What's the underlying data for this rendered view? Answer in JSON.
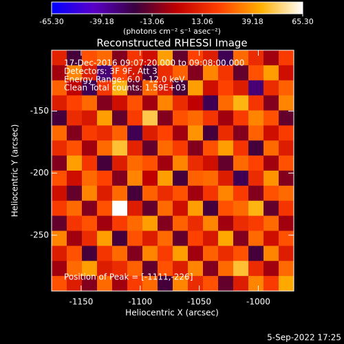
{
  "chart_data": {
    "type": "heatmap",
    "title": "Reconstructed RHESSI Image",
    "colorbar_label": "(photons cm⁻² s⁻¹ asec⁻²)",
    "clim": [
      -65.3,
      65.3
    ],
    "colormap": [
      "#0000ff",
      "#5a00c8",
      "#3a0040",
      "#c00000",
      "#ff4000",
      "#ffb000",
      "#ffffff"
    ],
    "cticks": [
      {
        "value": -65.3,
        "label": "-65.30"
      },
      -39.18,
      -13.06,
      13.06,
      39.18,
      {
        "value": 65.3,
        "label": "65.30"
      }
    ],
    "annotations": [
      "17-Dec-2016 09:07:20.000 to 09:08:00.000",
      "Detectors: 3F 9F, Att 3",
      "Energy Range: 6.0 - 12.0 keV",
      "Clean    Total counts: 1.59E+03"
    ],
    "peak_label": "Position of Peak = [-1111,-226]",
    "x_label": "Heliocentric X (arcsec)",
    "y_label": "Heliocentric Y (arcsec)",
    "xlim": [
      -1175,
      -970
    ],
    "ylim": [
      -295,
      -101
    ],
    "xticks": [
      -1150,
      -1100,
      -1050,
      -1000
    ],
    "yticks": [
      -150,
      -200,
      -250
    ],
    "z": [
      [
        12,
        -20,
        25,
        30,
        -10,
        18,
        5,
        40,
        -15,
        22,
        10,
        -25,
        30,
        15,
        -5,
        20
      ],
      [
        -5,
        35,
        10,
        -30,
        22,
        8,
        -20,
        15,
        28,
        -10,
        35,
        18,
        -15,
        25,
        40,
        5
      ],
      [
        28,
        0,
        -25,
        18,
        45,
        -15,
        30,
        10,
        -20,
        40,
        5,
        22,
        10,
        -30,
        15,
        28
      ],
      [
        10,
        22,
        30,
        -10,
        5,
        25,
        -5,
        35,
        15,
        0,
        -25,
        30,
        45,
        18,
        -10,
        35
      ],
      [
        -20,
        15,
        8,
        40,
        -15,
        20,
        50,
        -10,
        25,
        30,
        18,
        -5,
        20,
        35,
        25,
        -15
      ],
      [
        30,
        -10,
        20,
        15,
        28,
        -25,
        10,
        22,
        -5,
        38,
        -20,
        15,
        -10,
        28,
        5,
        20
      ],
      [
        15,
        25,
        -5,
        30,
        48,
        12,
        -15,
        30,
        20,
        -10,
        25,
        40,
        18,
        -20,
        30,
        10
      ],
      [
        -10,
        40,
        18,
        -20,
        10,
        30,
        25,
        -5,
        35,
        15,
        5,
        -15,
        30,
        22,
        -5,
        25
      ],
      [
        25,
        5,
        30,
        22,
        -10,
        35,
        0,
        40,
        -20,
        28,
        30,
        10,
        -25,
        15,
        38,
        -10
      ],
      [
        5,
        -15,
        35,
        10,
        30,
        -20,
        28,
        15,
        25,
        -5,
        18,
        35,
        20,
        -10,
        25,
        30
      ],
      [
        20,
        30,
        -10,
        25,
        65.3,
        10,
        -15,
        30,
        5,
        40,
        -20,
        25,
        30,
        45,
        -15,
        18
      ],
      [
        -15,
        18,
        25,
        -5,
        20,
        30,
        40,
        -10,
        28,
        15,
        35,
        -5,
        15,
        20,
        30,
        -5
      ],
      [
        35,
        -5,
        15,
        40,
        -20,
        25,
        10,
        30,
        -15,
        22,
        8,
        42,
        -10,
        30,
        5,
        25
      ],
      [
        10,
        25,
        -20,
        18,
        30,
        -10,
        35,
        20,
        40,
        -5,
        28,
        15,
        25,
        -20,
        35,
        10
      ],
      [
        -5,
        30,
        40,
        10,
        15,
        28,
        -15,
        25,
        10,
        35,
        -10,
        30,
        48,
        15,
        -5,
        30
      ],
      [
        25,
        10,
        -10,
        30,
        -5,
        20,
        30,
        -20,
        35,
        15,
        25,
        -15,
        10,
        35,
        20,
        42
      ]
    ]
  },
  "footer": "5-Sep-2022 17:25"
}
